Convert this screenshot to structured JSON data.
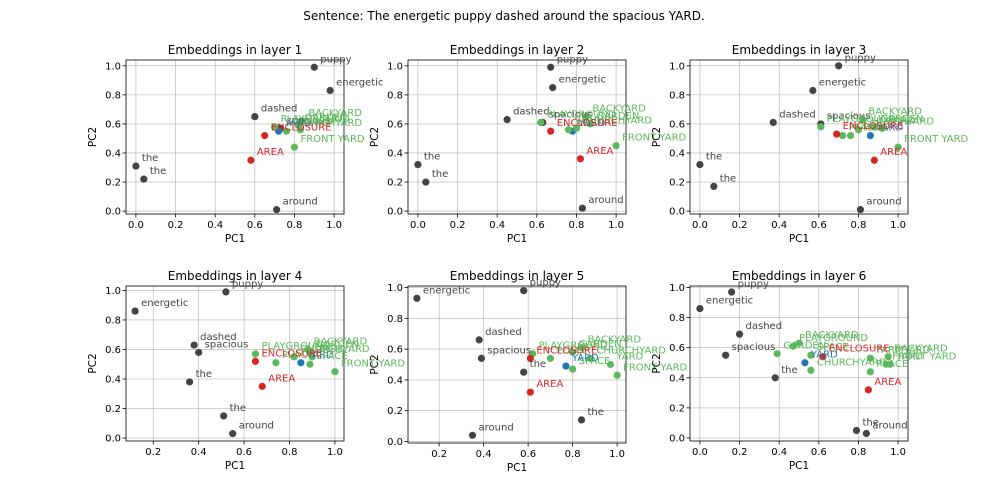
{
  "figure": {
    "suptitle": "Sentence: The energetic puppy dashed around the spacious YARD."
  },
  "colors": {
    "sentence": "#444444",
    "target": "#1f77b4",
    "place": "#5cb85c",
    "negative": "#d62728"
  },
  "chart_data": [
    {
      "type": "scatter",
      "title": "Embeddings in layer 1",
      "xlabel": "PC1",
      "ylabel": "PC2",
      "xlim": [
        -0.05,
        1.05
      ],
      "ylim": [
        -0.02,
        1.04
      ],
      "xticks": [
        0.0,
        0.2,
        0.4,
        0.6,
        0.8,
        1.0
      ],
      "xtick_labels": [
        "0.0",
        "0.2",
        "0.4",
        "0.6",
        "0.8",
        "1.0"
      ],
      "yticks": [
        0.0,
        0.2,
        0.4,
        0.6,
        0.8,
        1.0
      ],
      "ytick_labels": [
        "0.0",
        "0.2",
        "0.4",
        "0.6",
        "0.8",
        "1.0"
      ],
      "grid": true,
      "points": [
        {
          "label": "puppy",
          "x": 0.9,
          "y": 0.99,
          "group": "sentence"
        },
        {
          "label": "energetic",
          "x": 0.98,
          "y": 0.83,
          "group": "sentence"
        },
        {
          "label": "dashed",
          "x": 0.6,
          "y": 0.65,
          "group": "sentence"
        },
        {
          "label": "the",
          "x": 0.0,
          "y": 0.31,
          "group": "sentence"
        },
        {
          "label": "the",
          "x": 0.04,
          "y": 0.22,
          "group": "sentence"
        },
        {
          "label": "around",
          "x": 0.71,
          "y": 0.01,
          "group": "sentence"
        },
        {
          "label": "spacious",
          "x": 0.73,
          "y": 0.57,
          "group": "sentence"
        },
        {
          "label": "YARD",
          "x": 0.72,
          "y": 0.55,
          "group": "target"
        },
        {
          "label": "BACKYARD",
          "x": 0.84,
          "y": 0.62,
          "group": "place"
        },
        {
          "label": "PLAYGROUND",
          "x": 0.7,
          "y": 0.58,
          "group": "place"
        },
        {
          "label": "GARDEN",
          "x": 0.82,
          "y": 0.59,
          "group": "place"
        },
        {
          "label": "CHURCHYARD",
          "x": 0.76,
          "y": 0.55,
          "group": "place"
        },
        {
          "label": "YARD",
          "x": 0.83,
          "y": 0.56,
          "group": "place"
        },
        {
          "label": "FRONT YARD",
          "x": 0.8,
          "y": 0.44,
          "group": "place"
        },
        {
          "label": "ENCLOSURE",
          "x": 0.65,
          "y": 0.52,
          "group": "negative"
        },
        {
          "label": "AREA",
          "x": 0.58,
          "y": 0.35,
          "group": "negative"
        }
      ]
    },
    {
      "type": "scatter",
      "title": "Embeddings in layer 2",
      "xlabel": "PC1",
      "ylabel": "PC2",
      "xlim": [
        -0.05,
        1.05
      ],
      "ylim": [
        -0.02,
        1.04
      ],
      "xticks": [
        0.0,
        0.2,
        0.4,
        0.6,
        0.8,
        1.0
      ],
      "xtick_labels": [
        "0.0",
        "0.2",
        "0.4",
        "0.6",
        "0.8",
        "1.0"
      ],
      "yticks": [
        0.0,
        0.2,
        0.4,
        0.6,
        0.8,
        1.0
      ],
      "ytick_labels": [
        "0.0",
        "0.2",
        "0.4",
        "0.6",
        "0.8",
        "1.0"
      ],
      "grid": true,
      "points": [
        {
          "label": "puppy",
          "x": 0.67,
          "y": 0.99,
          "group": "sentence"
        },
        {
          "label": "energetic",
          "x": 0.68,
          "y": 0.85,
          "group": "sentence"
        },
        {
          "label": "dashed",
          "x": 0.45,
          "y": 0.63,
          "group": "sentence"
        },
        {
          "label": "spacious",
          "x": 0.63,
          "y": 0.61,
          "group": "sentence"
        },
        {
          "label": "the",
          "x": 0.0,
          "y": 0.32,
          "group": "sentence"
        },
        {
          "label": "the",
          "x": 0.04,
          "y": 0.2,
          "group": "sentence"
        },
        {
          "label": "around",
          "x": 0.83,
          "y": 0.02,
          "group": "sentence"
        },
        {
          "label": "YARD",
          "x": 0.78,
          "y": 0.55,
          "group": "target"
        },
        {
          "label": "BACKYARD",
          "x": 0.85,
          "y": 0.65,
          "group": "place"
        },
        {
          "label": "PLAYGROUND",
          "x": 0.62,
          "y": 0.61,
          "group": "place"
        },
        {
          "label": "GARDEN",
          "x": 0.87,
          "y": 0.6,
          "group": "place"
        },
        {
          "label": "CHURCHYARD",
          "x": 0.8,
          "y": 0.57,
          "group": "place"
        },
        {
          "label": "YARD",
          "x": 0.76,
          "y": 0.56,
          "group": "place"
        },
        {
          "label": "FRONT YARD",
          "x": 1.0,
          "y": 0.45,
          "group": "place"
        },
        {
          "label": "ENCLOSURE",
          "x": 0.67,
          "y": 0.55,
          "group": "negative"
        },
        {
          "label": "AREA",
          "x": 0.82,
          "y": 0.36,
          "group": "negative"
        }
      ]
    },
    {
      "type": "scatter",
      "title": "Embeddings in layer 3",
      "xlabel": "PC1",
      "ylabel": "PC2",
      "xlim": [
        -0.05,
        1.05
      ],
      "ylim": [
        -0.02,
        1.04
      ],
      "xticks": [
        0.0,
        0.2,
        0.4,
        0.6,
        0.8,
        1.0
      ],
      "xtick_labels": [
        "0.0",
        "0.2",
        "0.4",
        "0.6",
        "0.8",
        "1.0"
      ],
      "yticks": [
        0.0,
        0.2,
        0.4,
        0.6,
        0.8,
        1.0
      ],
      "ytick_labels": [
        "0.0",
        "0.2",
        "0.4",
        "0.6",
        "0.8",
        "1.0"
      ],
      "grid": true,
      "points": [
        {
          "label": "puppy",
          "x": 0.7,
          "y": 1.0,
          "group": "sentence"
        },
        {
          "label": "energetic",
          "x": 0.57,
          "y": 0.83,
          "group": "sentence"
        },
        {
          "label": "dashed",
          "x": 0.37,
          "y": 0.61,
          "group": "sentence"
        },
        {
          "label": "spacious",
          "x": 0.61,
          "y": 0.6,
          "group": "sentence"
        },
        {
          "label": "the",
          "x": 0.0,
          "y": 0.32,
          "group": "sentence"
        },
        {
          "label": "the",
          "x": 0.07,
          "y": 0.17,
          "group": "sentence"
        },
        {
          "label": "around",
          "x": 0.81,
          "y": 0.01,
          "group": "sentence"
        },
        {
          "label": "YARD",
          "x": 0.86,
          "y": 0.52,
          "group": "target"
        },
        {
          "label": "BACKYARD",
          "x": 0.82,
          "y": 0.63,
          "group": "place"
        },
        {
          "label": "PLAYGROUND",
          "x": 0.61,
          "y": 0.58,
          "group": "place"
        },
        {
          "label": "GARDEN",
          "x": 0.88,
          "y": 0.58,
          "group": "place"
        },
        {
          "label": "CHURCHYARD",
          "x": 0.8,
          "y": 0.56,
          "group": "place"
        },
        {
          "label": "YARD",
          "x": 0.92,
          "y": 0.57,
          "group": "place"
        },
        {
          "label": "FRONT YARD",
          "x": 1.0,
          "y": 0.44,
          "group": "place"
        },
        {
          "label": "PLACE",
          "x": 0.72,
          "y": 0.52,
          "group": "place"
        },
        {
          "label": "SPACE",
          "x": 0.76,
          "y": 0.52,
          "group": "place"
        },
        {
          "label": "ENCLOSURE",
          "x": 0.69,
          "y": 0.53,
          "group": "negative"
        },
        {
          "label": "AREA",
          "x": 0.88,
          "y": 0.35,
          "group": "negative"
        }
      ]
    },
    {
      "type": "scatter",
      "title": "Embeddings in layer 4",
      "xlabel": "PC1",
      "ylabel": "PC2",
      "xlim": [
        0.08,
        1.04
      ],
      "ylim": [
        -0.02,
        1.03
      ],
      "xticks": [
        0.2,
        0.4,
        0.6,
        0.8,
        1.0
      ],
      "xtick_labels": [
        "0.2",
        "0.4",
        "0.6",
        "0.8",
        "1.0"
      ],
      "yticks": [
        0.0,
        0.2,
        0.4,
        0.6,
        0.8,
        1.0
      ],
      "ytick_labels": [
        "0.0",
        "0.2",
        "0.4",
        "0.6",
        "0.8",
        "1.0"
      ],
      "grid": true,
      "points": [
        {
          "label": "energetic",
          "x": 0.12,
          "y": 0.86,
          "group": "sentence"
        },
        {
          "label": "puppy",
          "x": 0.52,
          "y": 0.99,
          "group": "sentence"
        },
        {
          "label": "dashed",
          "x": 0.38,
          "y": 0.63,
          "group": "sentence"
        },
        {
          "label": "spacious",
          "x": 0.4,
          "y": 0.58,
          "group": "sentence"
        },
        {
          "label": "the",
          "x": 0.36,
          "y": 0.38,
          "group": "sentence"
        },
        {
          "label": "the",
          "x": 0.51,
          "y": 0.15,
          "group": "sentence"
        },
        {
          "label": "around",
          "x": 0.55,
          "y": 0.03,
          "group": "sentence"
        },
        {
          "label": "YARD",
          "x": 0.85,
          "y": 0.51,
          "group": "target"
        },
        {
          "label": "BACKYARD",
          "x": 0.88,
          "y": 0.6,
          "group": "place"
        },
        {
          "label": "PLAYGROUND",
          "x": 0.65,
          "y": 0.57,
          "group": "place"
        },
        {
          "label": "GARDEN",
          "x": 0.89,
          "y": 0.58,
          "group": "place"
        },
        {
          "label": "CHURCHYARD",
          "x": 0.82,
          "y": 0.55,
          "group": "place"
        },
        {
          "label": "YARD",
          "x": 0.9,
          "y": 0.55,
          "group": "place"
        },
        {
          "label": "FRONT YARD",
          "x": 1.0,
          "y": 0.45,
          "group": "place"
        },
        {
          "label": "PLACE",
          "x": 0.74,
          "y": 0.51,
          "group": "place"
        },
        {
          "label": "SPACE",
          "x": 0.89,
          "y": 0.5,
          "group": "place"
        },
        {
          "label": "ENCLOSURE",
          "x": 0.65,
          "y": 0.52,
          "group": "negative"
        },
        {
          "label": "AREA",
          "x": 0.68,
          "y": 0.35,
          "group": "negative"
        }
      ]
    },
    {
      "type": "scatter",
      "title": "Embeddings in layer 5",
      "xlabel": "PC1",
      "ylabel": "PC2",
      "xlim": [
        0.06,
        1.04
      ],
      "ylim": [
        -0.01,
        1.01
      ],
      "xticks": [
        0.2,
        0.4,
        0.6,
        0.8,
        1.0
      ],
      "xtick_labels": [
        "0.2",
        "0.4",
        "0.6",
        "0.8",
        "1.0"
      ],
      "yticks": [
        0.0,
        0.2,
        0.4,
        0.6,
        0.8,
        1.0
      ],
      "ytick_labels": [
        "0.0",
        "0.2",
        "0.4",
        "0.6",
        "0.8",
        "1.0"
      ],
      "grid": true,
      "points": [
        {
          "label": "energetic",
          "x": 0.1,
          "y": 0.93,
          "group": "sentence"
        },
        {
          "label": "puppy",
          "x": 0.58,
          "y": 0.98,
          "group": "sentence"
        },
        {
          "label": "dashed",
          "x": 0.38,
          "y": 0.66,
          "group": "sentence"
        },
        {
          "label": "spacious",
          "x": 0.39,
          "y": 0.54,
          "group": "sentence"
        },
        {
          "label": "the",
          "x": 0.58,
          "y": 0.45,
          "group": "sentence"
        },
        {
          "label": "the",
          "x": 0.84,
          "y": 0.14,
          "group": "sentence"
        },
        {
          "label": "around",
          "x": 0.35,
          "y": 0.04,
          "group": "sentence"
        },
        {
          "label": "YARD",
          "x": 0.77,
          "y": 0.49,
          "group": "target"
        },
        {
          "label": "BACKYARD",
          "x": 0.84,
          "y": 0.61,
          "group": "place"
        },
        {
          "label": "PLAYGROUND",
          "x": 0.62,
          "y": 0.57,
          "group": "place"
        },
        {
          "label": "GARDEN",
          "x": 0.8,
          "y": 0.58,
          "group": "place"
        },
        {
          "label": "CHURCHYARD",
          "x": 0.88,
          "y": 0.54,
          "group": "place"
        },
        {
          "label": "YARD",
          "x": 0.97,
          "y": 0.5,
          "group": "place"
        },
        {
          "label": "FRONT YARD",
          "x": 1.0,
          "y": 0.43,
          "group": "place"
        },
        {
          "label": "PLACE",
          "x": 0.7,
          "y": 0.54,
          "group": "place"
        },
        {
          "label": "SPACE",
          "x": 0.8,
          "y": 0.47,
          "group": "place"
        },
        {
          "label": "ENCLOSURE",
          "x": 0.61,
          "y": 0.54,
          "group": "negative"
        },
        {
          "label": "AREA",
          "x": 0.61,
          "y": 0.32,
          "group": "negative"
        }
      ]
    },
    {
      "type": "scatter",
      "title": "Embeddings in layer 6",
      "xlabel": "PC1",
      "ylabel": "PC2",
      "xlim": [
        -0.05,
        1.05
      ],
      "ylim": [
        -0.02,
        1.01
      ],
      "xticks": [
        0.0,
        0.2,
        0.4,
        0.6,
        0.8,
        1.0
      ],
      "xtick_labels": [
        "0.0",
        "0.2",
        "0.4",
        "0.6",
        "0.8",
        "1.0"
      ],
      "yticks": [
        0.0,
        0.2,
        0.4,
        0.6,
        0.8,
        1.0
      ],
      "ytick_labels": [
        "0.0",
        "0.2",
        "0.4",
        "0.6",
        "0.8",
        "1.0"
      ],
      "grid": true,
      "points": [
        {
          "label": "energetic",
          "x": 0.0,
          "y": 0.86,
          "group": "sentence"
        },
        {
          "label": "puppy",
          "x": 0.16,
          "y": 0.97,
          "group": "sentence"
        },
        {
          "label": "dashed",
          "x": 0.2,
          "y": 0.69,
          "group": "sentence"
        },
        {
          "label": "spacious",
          "x": 0.13,
          "y": 0.55,
          "group": "sentence"
        },
        {
          "label": "the",
          "x": 0.38,
          "y": 0.4,
          "group": "sentence"
        },
        {
          "label": "the",
          "x": 0.79,
          "y": 0.05,
          "group": "sentence"
        },
        {
          "label": "around",
          "x": 0.84,
          "y": 0.03,
          "group": "sentence"
        },
        {
          "label": "YARD",
          "x": 0.53,
          "y": 0.5,
          "group": "target"
        },
        {
          "label": "BACKYARD",
          "x": 0.5,
          "y": 0.63,
          "group": "place"
        },
        {
          "label": "PLAYGROUND",
          "x": 0.47,
          "y": 0.61,
          "group": "place"
        },
        {
          "label": "GARDEN",
          "x": 0.39,
          "y": 0.56,
          "group": "place"
        },
        {
          "label": "CHURCHYARD",
          "x": 0.56,
          "y": 0.45,
          "group": "place"
        },
        {
          "label": "FARMYARD",
          "x": 0.86,
          "y": 0.53,
          "group": "place"
        },
        {
          "label": "BACKYARD",
          "x": 0.95,
          "y": 0.54,
          "group": "place"
        },
        {
          "label": "YARD",
          "x": 0.96,
          "y": 0.49,
          "group": "place"
        },
        {
          "label": "FRONT YARD",
          "x": 0.94,
          "y": 0.49,
          "group": "place"
        },
        {
          "label": "SPACE",
          "x": 0.56,
          "y": 0.55,
          "group": "place"
        },
        {
          "label": "PLACE",
          "x": 0.86,
          "y": 0.44,
          "group": "place"
        },
        {
          "label": "ENCLOSURE",
          "x": 0.62,
          "y": 0.54,
          "group": "negative"
        },
        {
          "label": "AREA",
          "x": 0.85,
          "y": 0.32,
          "group": "negative"
        }
      ]
    }
  ]
}
